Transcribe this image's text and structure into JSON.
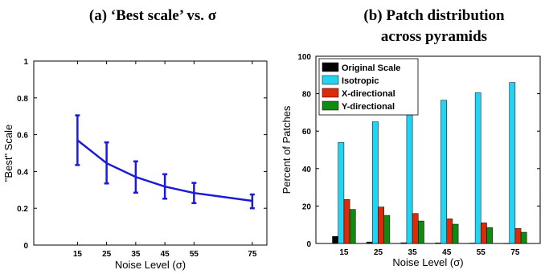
{
  "chart_data": [
    {
      "type": "line",
      "panel_title": "(a) ‘Best scale’ vs. σ",
      "xlabel": "Noise Level  (σ)",
      "ylabel": "\"Best\" Scale",
      "x": [
        15,
        25,
        35,
        45,
        55,
        75
      ],
      "x_tick_labels": [
        "15",
        "25",
        "35",
        "45",
        "55",
        "75"
      ],
      "ylim": [
        0,
        1
      ],
      "y_ticks": [
        0,
        0.2,
        0.4,
        0.6,
        0.8,
        1
      ],
      "y_tick_labels": [
        "0",
        "0.2",
        "0.4",
        "0.6",
        "0.8",
        "1"
      ],
      "series": [
        {
          "values": [
            0.57,
            0.445,
            0.37,
            0.318,
            0.283,
            0.24
          ],
          "error_low": [
            0.435,
            0.335,
            0.285,
            0.252,
            0.228,
            0.2
          ],
          "error_high": [
            0.705,
            0.558,
            0.455,
            0.385,
            0.338,
            0.275
          ],
          "color": "#1a1ad8"
        }
      ],
      "grid": false
    },
    {
      "type": "bar",
      "panel_title_line1": "(b) Patch distribution",
      "panel_title_line2": "across pyramids",
      "xlabel": "Noise Level (σ)",
      "ylabel": "Percent of Patches",
      "categories": [
        "15",
        "25",
        "35",
        "45",
        "55",
        "75"
      ],
      "ylim": [
        0,
        100
      ],
      "y_ticks": [
        0,
        20,
        40,
        60,
        80,
        100
      ],
      "y_tick_labels": [
        "0",
        "20",
        "40",
        "60",
        "80",
        "100"
      ],
      "legend_position": "top-left",
      "series": [
        {
          "name": "Original Scale",
          "color": "#000000",
          "values": [
            3.8,
            0.8,
            0.4,
            0.3,
            0.2,
            0.1
          ]
        },
        {
          "name": "Isotropic",
          "color": "#22d3f2",
          "values": [
            54,
            65,
            71.5,
            76.5,
            80.5,
            86
          ]
        },
        {
          "name": "X-directional",
          "color": "#dd2a0a",
          "values": [
            23.5,
            19.5,
            16,
            13.2,
            11,
            8
          ]
        },
        {
          "name": "Y-directional",
          "color": "#118a11",
          "values": [
            18.2,
            15,
            12,
            10.3,
            8.5,
            6
          ]
        }
      ],
      "grid": false
    }
  ]
}
